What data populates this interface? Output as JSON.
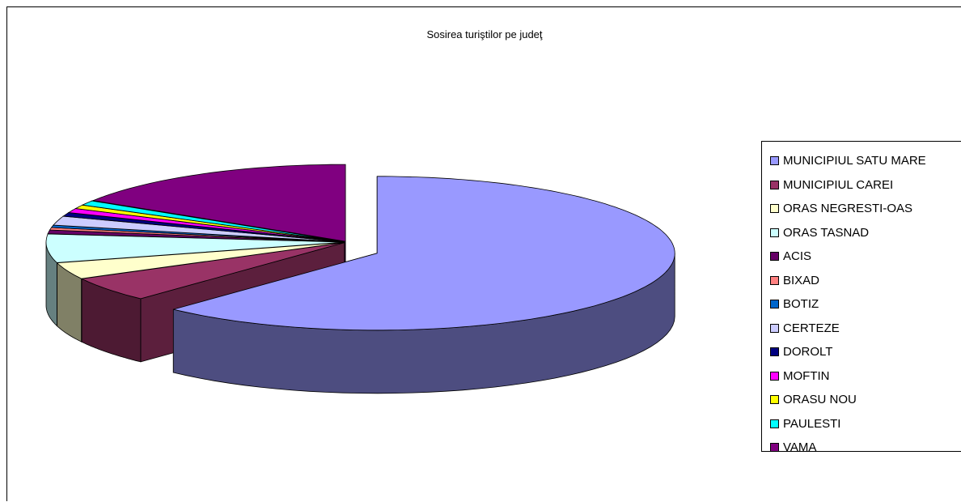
{
  "chart_data": {
    "type": "pie",
    "title": "Sosirea turiştilor pe judeţ",
    "legend_position": "right",
    "categories": [
      "MUNICIPIUL SATU MARE",
      "MUNICIPIUL CAREI",
      "ORAS NEGRESTI-OAS",
      "ORAS TASNAD",
      "ACIS",
      "BIXAD",
      "BOTIZ",
      "CERTEZE",
      "DOROLT",
      "MOFTIN",
      "ORASU NOU",
      "PAULESTI",
      "VAMA"
    ],
    "values": [
      62.0,
      5.2,
      3.5,
      6.0,
      0.8,
      0.5,
      0.5,
      1.9,
      0.8,
      0.9,
      0.8,
      1.0,
      16.1
    ],
    "colors": [
      "#9999ff",
      "#993366",
      "#ffffcc",
      "#ccffff",
      "#660066",
      "#ff8080",
      "#0066cc",
      "#ccccff",
      "#000080",
      "#ff00ff",
      "#ffff00",
      "#00ffff",
      "#800080"
    ],
    "exploded_slice": "MUNICIPIUL SATU MARE"
  }
}
